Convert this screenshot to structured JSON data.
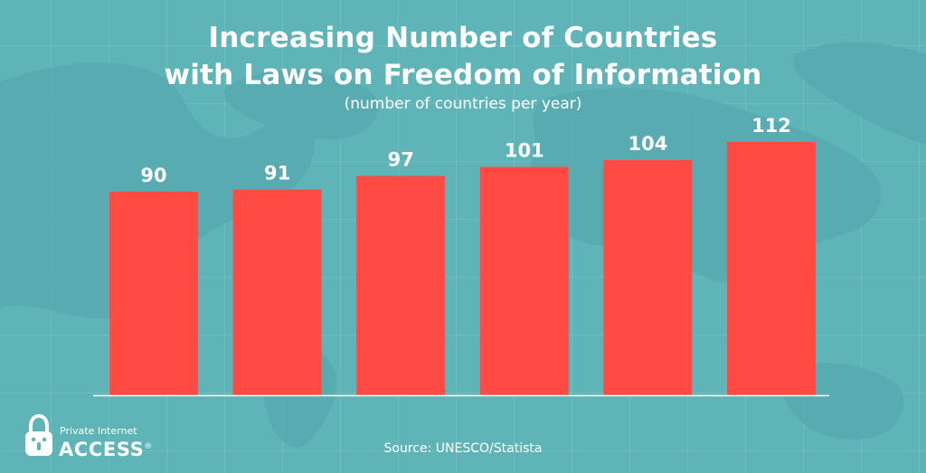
{
  "chart_data": {
    "type": "bar",
    "title": "Increasing Number of Countries with Laws on Freedom of Information",
    "title_lines": [
      "Increasing Number of Countries",
      "with Laws on Freedom of Information"
    ],
    "subtitle": "(number of countries per year)",
    "xlabel": "",
    "ylabel": "",
    "categories": [
      "",
      "",
      "",
      "",
      "",
      ""
    ],
    "values": [
      90,
      91,
      97,
      101,
      104,
      112
    ],
    "ylim": [
      0,
      112
    ],
    "data_labels": true,
    "grid": false,
    "bar_color": "#ff4b44",
    "baseline_color": "#ffffff"
  },
  "source": "Source: UNESCO/Statista",
  "logo": {
    "line1": "Private Internet",
    "line2": "ACCESS",
    "mark": "®",
    "icon": "padlock-icon"
  },
  "colors": {
    "background": "#5fb4b8",
    "text": "#ffffff"
  }
}
